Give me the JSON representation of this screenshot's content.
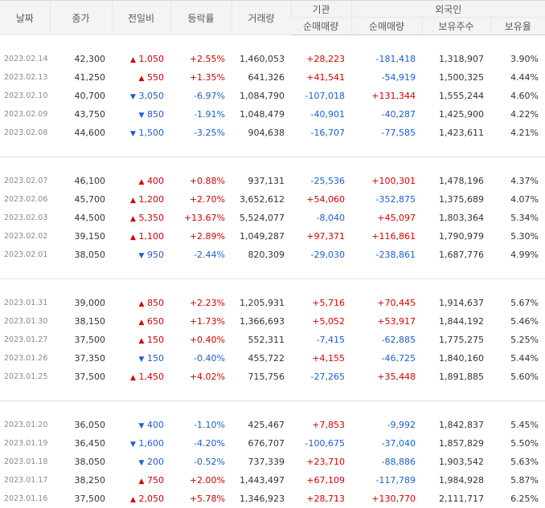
{
  "header": {
    "date": "날짜",
    "close": "종가",
    "change": "전일비",
    "rate": "등락률",
    "volume": "거래량",
    "institution": "기관",
    "foreign": "외국인",
    "inst_net": "순매매량",
    "foreign_net": "순매매량",
    "foreign_holding": "보유주수",
    "foreign_ratio": "보유율"
  },
  "groups": [
    {
      "rows": [
        {
          "date": "2023.02.14",
          "close": "42,300",
          "dir": "up",
          "change": "1,050",
          "rate": "+2.55%",
          "volume": "1,460,053",
          "inst": "+28,223",
          "foreign": "-181,418",
          "holding": "1,318,907",
          "ratio": "3.90%"
        },
        {
          "date": "2023.02.13",
          "close": "41,250",
          "dir": "up",
          "change": "550",
          "rate": "+1.35%",
          "volume": "641,326",
          "inst": "+41,541",
          "foreign": "-54,919",
          "holding": "1,500,325",
          "ratio": "4.44%"
        },
        {
          "date": "2023.02.10",
          "close": "40,700",
          "dir": "down",
          "change": "3,050",
          "rate": "-6.97%",
          "volume": "1,084,790",
          "inst": "-107,018",
          "foreign": "+131,344",
          "holding": "1,555,244",
          "ratio": "4.60%"
        },
        {
          "date": "2023.02.09",
          "close": "43,750",
          "dir": "down",
          "change": "850",
          "rate": "-1.91%",
          "volume": "1,048,479",
          "inst": "-40,901",
          "foreign": "-40,287",
          "holding": "1,425,900",
          "ratio": "4.22%"
        },
        {
          "date": "2023.02.08",
          "close": "44,600",
          "dir": "down",
          "change": "1,500",
          "rate": "-3.25%",
          "volume": "904,638",
          "inst": "-16,707",
          "foreign": "-77,585",
          "holding": "1,423,611",
          "ratio": "4.21%"
        }
      ]
    },
    {
      "rows": [
        {
          "date": "2023.02.07",
          "close": "46,100",
          "dir": "up",
          "change": "400",
          "rate": "+0.88%",
          "volume": "937,131",
          "inst": "-25,536",
          "foreign": "+100,301",
          "holding": "1,478,196",
          "ratio": "4.37%"
        },
        {
          "date": "2023.02.06",
          "close": "45,700",
          "dir": "up",
          "change": "1,200",
          "rate": "+2.70%",
          "volume": "3,652,612",
          "inst": "+54,060",
          "foreign": "-352,875",
          "holding": "1,375,689",
          "ratio": "4.07%"
        },
        {
          "date": "2023.02.03",
          "close": "44,500",
          "dir": "up",
          "change": "5,350",
          "rate": "+13.67%",
          "volume": "5,524,077",
          "inst": "-8,040",
          "foreign": "+45,097",
          "holding": "1,803,364",
          "ratio": "5.34%"
        },
        {
          "date": "2023.02.02",
          "close": "39,150",
          "dir": "up",
          "change": "1,100",
          "rate": "+2.89%",
          "volume": "1,049,287",
          "inst": "+97,371",
          "foreign": "+116,861",
          "holding": "1,790,979",
          "ratio": "5.30%"
        },
        {
          "date": "2023.02.01",
          "close": "38,050",
          "dir": "down",
          "change": "950",
          "rate": "-2.44%",
          "volume": "820,309",
          "inst": "-29,030",
          "foreign": "-238,861",
          "holding": "1,687,776",
          "ratio": "4.99%"
        }
      ]
    },
    {
      "rows": [
        {
          "date": "2023.01.31",
          "close": "39,000",
          "dir": "up",
          "change": "850",
          "rate": "+2.23%",
          "volume": "1,205,931",
          "inst": "+5,716",
          "foreign": "+70,445",
          "holding": "1,914,637",
          "ratio": "5.67%"
        },
        {
          "date": "2023.01.30",
          "close": "38,150",
          "dir": "up",
          "change": "650",
          "rate": "+1.73%",
          "volume": "1,366,693",
          "inst": "+5,052",
          "foreign": "+53,917",
          "holding": "1,844,192",
          "ratio": "5.46%"
        },
        {
          "date": "2023.01.27",
          "close": "37,500",
          "dir": "up",
          "change": "150",
          "rate": "+0.40%",
          "volume": "552,311",
          "inst": "-7,415",
          "foreign": "-62,885",
          "holding": "1,775,275",
          "ratio": "5.25%"
        },
        {
          "date": "2023.01.26",
          "close": "37,350",
          "dir": "down",
          "change": "150",
          "rate": "-0.40%",
          "volume": "455,722",
          "inst": "+4,155",
          "foreign": "-46,725",
          "holding": "1,840,160",
          "ratio": "5.44%"
        },
        {
          "date": "2023.01.25",
          "close": "37,500",
          "dir": "up",
          "change": "1,450",
          "rate": "+4.02%",
          "volume": "715,756",
          "inst": "-27,265",
          "foreign": "+35,448",
          "holding": "1,891,885",
          "ratio": "5.60%"
        }
      ]
    },
    {
      "rows": [
        {
          "date": "2023.01.20",
          "close": "36,050",
          "dir": "down",
          "change": "400",
          "rate": "-1.10%",
          "volume": "425,467",
          "inst": "+7,853",
          "foreign": "-9,992",
          "holding": "1,842,837",
          "ratio": "5.45%"
        },
        {
          "date": "2023.01.19",
          "close": "36,450",
          "dir": "down",
          "change": "1,600",
          "rate": "-4.20%",
          "volume": "676,707",
          "inst": "-100,675",
          "foreign": "-37,040",
          "holding": "1,857,829",
          "ratio": "5.50%"
        },
        {
          "date": "2023.01.18",
          "close": "38,050",
          "dir": "down",
          "change": "200",
          "rate": "-0.52%",
          "volume": "737,339",
          "inst": "+23,710",
          "foreign": "-88,886",
          "holding": "1,903,542",
          "ratio": "5.63%"
        },
        {
          "date": "2023.01.17",
          "close": "38,250",
          "dir": "up",
          "change": "750",
          "rate": "+2.00%",
          "volume": "1,443,497",
          "inst": "+67,109",
          "foreign": "-117,789",
          "holding": "1,984,928",
          "ratio": "5.87%"
        },
        {
          "date": "2023.01.16",
          "close": "37,500",
          "dir": "up",
          "change": "2,050",
          "rate": "+5.78%",
          "volume": "1,346,923",
          "inst": "+28,713",
          "foreign": "+130,770",
          "holding": "2,111,717",
          "ratio": "6.25%"
        }
      ]
    }
  ],
  "colors": {
    "up": "#d60000",
    "down": "#1a5fcf",
    "header_bg": "#f4f4f4"
  }
}
